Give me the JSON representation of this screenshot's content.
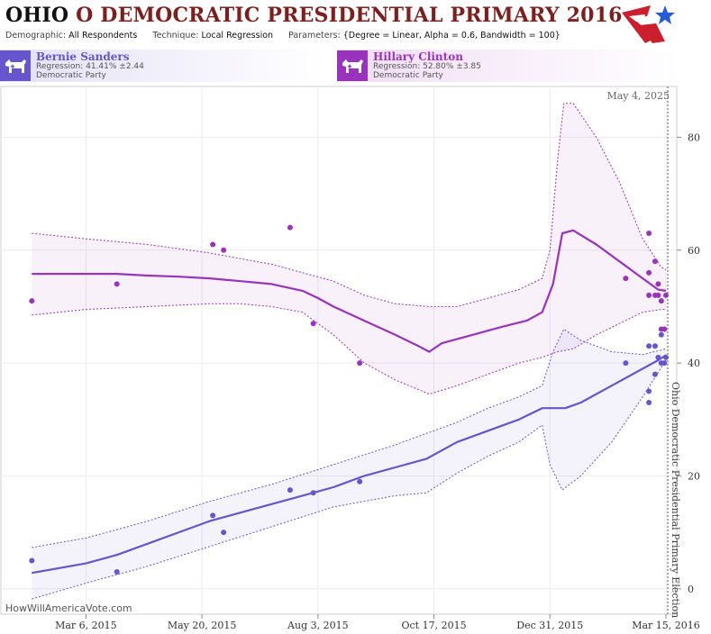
{
  "header": {
    "state": "OHIO",
    "title_rest": "O DEMOCRATIC PRESIDENTIAL PRIMARY 2016",
    "demographic_label": "Demographic:",
    "demographic_value": "All Respondents",
    "technique_label": "Technique:",
    "technique_value": "Local Regression",
    "parameters_label": "Parameters:",
    "parameters_value": "{Degree = Linear, Alpha = 0.6, Bandwidth = 100}"
  },
  "candidates": [
    {
      "name": "Bernie Sanders",
      "regression": "Regression: 41.41% ±2.44",
      "party": "Democratic Party",
      "color": "#6655cc"
    },
    {
      "name": "Hillary Clinton",
      "regression": "Regression: 52.80% ±3.85",
      "party": "Democratic Party",
      "color": "#9933bb"
    }
  ],
  "footer": {
    "watermark": "HowWillAmericaVote.com"
  },
  "chart_data": {
    "type": "line",
    "x_ticks": [
      {
        "label": "Mar 6, 2015",
        "day": 0
      },
      {
        "label": "May 20, 2015",
        "day": 75
      },
      {
        "label": "Aug 3, 2015",
        "day": 150
      },
      {
        "label": "Oct 17, 2015",
        "day": 225
      },
      {
        "label": "Dec 31, 2015",
        "day": 300
      },
      {
        "label": "Mar 15, 2016",
        "day": 375
      }
    ],
    "xlim": [
      -55,
      382
    ],
    "y_ticks": [
      0,
      20,
      40,
      60,
      80
    ],
    "ylim": [
      -4.5,
      89
    ],
    "marker_top_label": "May 4, 2025",
    "election_label": "Ohio Democratic Presidential Primary Election",
    "election_day": 375,
    "series": [
      {
        "name": "Hillary Clinton",
        "color": "#9933bb",
        "points": [
          [
            -35,
            51
          ],
          [
            20,
            54
          ],
          [
            82,
            61
          ],
          [
            89,
            60
          ],
          [
            132,
            64
          ],
          [
            147,
            47
          ],
          [
            177,
            40
          ],
          [
            349,
            55
          ],
          [
            364,
            63
          ],
          [
            364,
            56
          ],
          [
            364,
            52
          ],
          [
            368,
            58
          ],
          [
            368,
            52
          ],
          [
            370,
            54
          ],
          [
            370,
            52
          ],
          [
            372,
            51
          ],
          [
            372,
            46
          ],
          [
            374,
            46
          ],
          [
            375,
            52
          ]
        ],
        "fit": [
          [
            -35,
            55.8
          ],
          [
            0,
            55.8
          ],
          [
            20,
            55.8
          ],
          [
            40,
            55.5
          ],
          [
            60,
            55.3
          ],
          [
            80,
            55
          ],
          [
            100,
            54.5
          ],
          [
            120,
            54
          ],
          [
            140,
            52.8
          ],
          [
            150,
            51.5
          ],
          [
            160,
            50
          ],
          [
            180,
            47.5
          ],
          [
            200,
            45
          ],
          [
            215,
            43
          ],
          [
            222,
            42
          ],
          [
            230,
            43.5
          ],
          [
            250,
            45
          ],
          [
            270,
            46.5
          ],
          [
            285,
            47.5
          ],
          [
            295,
            49
          ],
          [
            302,
            54
          ],
          [
            308,
            63
          ],
          [
            315,
            63.5
          ],
          [
            330,
            61
          ],
          [
            345,
            58
          ],
          [
            360,
            55
          ],
          [
            370,
            53
          ],
          [
            375,
            52.8
          ]
        ],
        "upper": [
          [
            -35,
            63
          ],
          [
            0,
            62
          ],
          [
            40,
            61
          ],
          [
            80,
            59.5
          ],
          [
            100,
            58.5
          ],
          [
            120,
            57.5
          ],
          [
            140,
            56
          ],
          [
            160,
            54.5
          ],
          [
            180,
            52
          ],
          [
            200,
            50.5
          ],
          [
            222,
            50
          ],
          [
            240,
            50
          ],
          [
            260,
            51.5
          ],
          [
            280,
            53
          ],
          [
            295,
            55
          ],
          [
            300,
            60
          ],
          [
            305,
            76
          ],
          [
            309,
            86
          ],
          [
            315,
            86
          ],
          [
            330,
            80
          ],
          [
            345,
            72
          ],
          [
            360,
            62
          ],
          [
            372,
            57
          ],
          [
            375,
            56.5
          ]
        ],
        "lower": [
          [
            -35,
            48.5
          ],
          [
            0,
            49.5
          ],
          [
            40,
            50
          ],
          [
            80,
            50.5
          ],
          [
            100,
            50.5
          ],
          [
            120,
            50
          ],
          [
            140,
            49
          ],
          [
            160,
            45
          ],
          [
            180,
            40
          ],
          [
            200,
            37
          ],
          [
            222,
            34.5
          ],
          [
            240,
            36
          ],
          [
            260,
            38
          ],
          [
            280,
            40
          ],
          [
            295,
            41
          ],
          [
            305,
            42
          ],
          [
            315,
            42.5
          ],
          [
            330,
            45
          ],
          [
            345,
            47
          ],
          [
            360,
            49
          ],
          [
            372,
            49.5
          ],
          [
            375,
            49.5
          ]
        ]
      },
      {
        "name": "Bernie Sanders",
        "color": "#6655cc",
        "points": [
          [
            -35,
            5
          ],
          [
            20,
            3
          ],
          [
            82,
            13
          ],
          [
            89,
            10
          ],
          [
            132,
            17.5
          ],
          [
            147,
            17
          ],
          [
            177,
            19
          ],
          [
            349,
            40
          ],
          [
            364,
            35
          ],
          [
            364,
            33
          ],
          [
            364,
            43
          ],
          [
            368,
            38
          ],
          [
            368,
            43
          ],
          [
            370,
            41
          ],
          [
            372,
            40
          ],
          [
            372,
            45
          ],
          [
            374,
            40
          ],
          [
            375,
            41
          ]
        ],
        "fit": [
          [
            -35,
            2.8
          ],
          [
            0,
            4.5
          ],
          [
            20,
            6
          ],
          [
            40,
            8
          ],
          [
            60,
            10
          ],
          [
            80,
            12
          ],
          [
            100,
            13.5
          ],
          [
            120,
            15
          ],
          [
            140,
            16.5
          ],
          [
            160,
            18
          ],
          [
            180,
            20
          ],
          [
            200,
            21.5
          ],
          [
            220,
            23
          ],
          [
            240,
            26
          ],
          [
            260,
            28
          ],
          [
            280,
            30
          ],
          [
            295,
            32
          ],
          [
            310,
            32
          ],
          [
            320,
            33
          ],
          [
            340,
            36
          ],
          [
            360,
            39
          ],
          [
            370,
            40.5
          ],
          [
            375,
            41.4
          ]
        ],
        "upper": [
          [
            -35,
            7.3
          ],
          [
            0,
            9
          ],
          [
            40,
            12
          ],
          [
            80,
            15.5
          ],
          [
            120,
            18.5
          ],
          [
            160,
            22
          ],
          [
            200,
            25.5
          ],
          [
            220,
            27.5
          ],
          [
            240,
            29.5
          ],
          [
            260,
            32
          ],
          [
            280,
            34
          ],
          [
            295,
            36
          ],
          [
            302,
            42
          ],
          [
            309,
            46
          ],
          [
            320,
            44
          ],
          [
            340,
            42
          ],
          [
            360,
            41.5
          ],
          [
            375,
            42.5
          ]
        ],
        "lower": [
          [
            -35,
            -1.8
          ],
          [
            0,
            1
          ],
          [
            40,
            4
          ],
          [
            80,
            7.5
          ],
          [
            120,
            11
          ],
          [
            160,
            14.5
          ],
          [
            200,
            16.5
          ],
          [
            220,
            17
          ],
          [
            240,
            20.5
          ],
          [
            260,
            23.5
          ],
          [
            280,
            26
          ],
          [
            295,
            29
          ],
          [
            300,
            22
          ],
          [
            308,
            17.5
          ],
          [
            320,
            20
          ],
          [
            340,
            26
          ],
          [
            360,
            34
          ],
          [
            375,
            40.5
          ]
        ]
      }
    ]
  }
}
